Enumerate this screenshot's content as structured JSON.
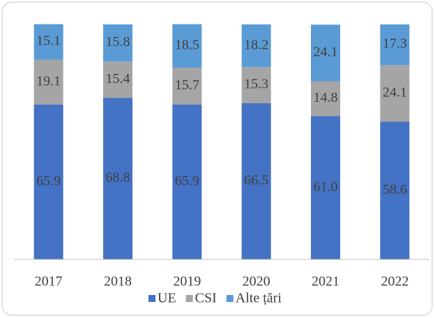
{
  "chart_data": {
    "type": "bar",
    "stacked": true,
    "categories": [
      "2017",
      "2018",
      "2019",
      "2020",
      "2021",
      "2022"
    ],
    "series": [
      {
        "name": "UE",
        "color": "#4472c4",
        "values": [
          65.9,
          68.8,
          65.9,
          66.5,
          61.0,
          58.6
        ],
        "value_labels": [
          "65.9",
          "68.8",
          "65.9",
          "66.5",
          "61.0",
          "58.6"
        ]
      },
      {
        "name": "CSI",
        "color": "#a5a5a5",
        "values": [
          19.1,
          15.4,
          15.7,
          15.3,
          14.8,
          24.1
        ],
        "value_labels": [
          "19.1",
          "15.4",
          "15.7",
          "15.3",
          "14.8",
          "24.1"
        ]
      },
      {
        "name": "Alte țări",
        "color": "#5b9bd5",
        "values": [
          15.1,
          15.8,
          18.5,
          18.2,
          24.1,
          17.3
        ],
        "value_labels": [
          "15.1",
          "15.8",
          "18.5",
          "18.2",
          "24.1",
          "17.3"
        ]
      }
    ],
    "ylim": [
      0,
      100
    ],
    "legend": "bottom"
  }
}
